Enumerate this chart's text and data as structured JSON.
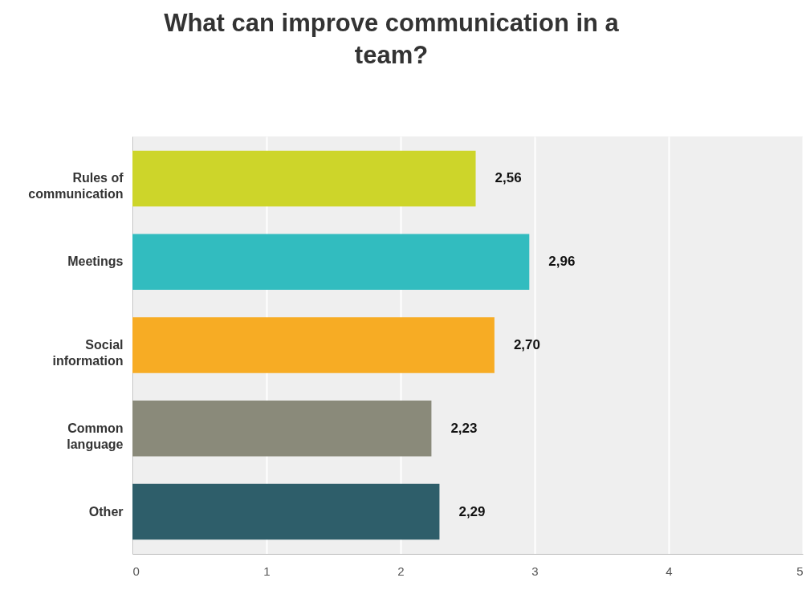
{
  "chart_data": {
    "type": "bar",
    "orientation": "horizontal",
    "title": "What can improve communication in a team?",
    "categories": [
      "Rules of communication",
      "Meetings",
      "Social information",
      "Common language",
      "Other"
    ],
    "values": [
      2.56,
      2.96,
      2.7,
      2.23,
      2.29
    ],
    "value_labels": [
      "2,56",
      "2,96",
      "2,70",
      "2,23",
      "2,29"
    ],
    "colors": [
      "#cdd52a",
      "#32bcbf",
      "#f7ac24",
      "#8a8a7a",
      "#2e5e6a"
    ],
    "xlim": [
      0,
      5
    ],
    "xticks": [
      0,
      1,
      2,
      3,
      4,
      5
    ],
    "grid": "x"
  }
}
